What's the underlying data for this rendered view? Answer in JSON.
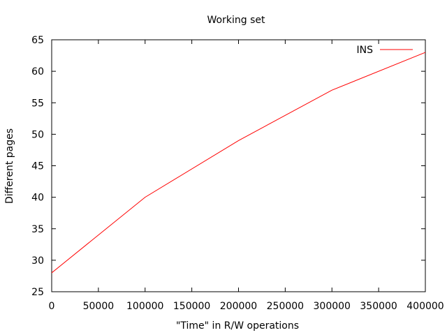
{
  "chart_data": {
    "type": "line",
    "title": "Working set",
    "xlabel": "\"Time\" in R/W operations",
    "ylabel": "Different pages",
    "xlim": [
      0,
      400000
    ],
    "ylim": [
      25,
      65
    ],
    "x_ticks": [
      0,
      50000,
      100000,
      150000,
      200000,
      250000,
      300000,
      350000,
      400000
    ],
    "y_ticks": [
      25,
      30,
      35,
      40,
      45,
      50,
      55,
      60,
      65
    ],
    "grid": false,
    "legend_position": "top-right",
    "series": [
      {
        "name": "INS",
        "color": "#ff0000",
        "x": [
          0,
          100000,
          200000,
          300000,
          400000
        ],
        "y": [
          28,
          40,
          49,
          57,
          63
        ]
      }
    ]
  }
}
